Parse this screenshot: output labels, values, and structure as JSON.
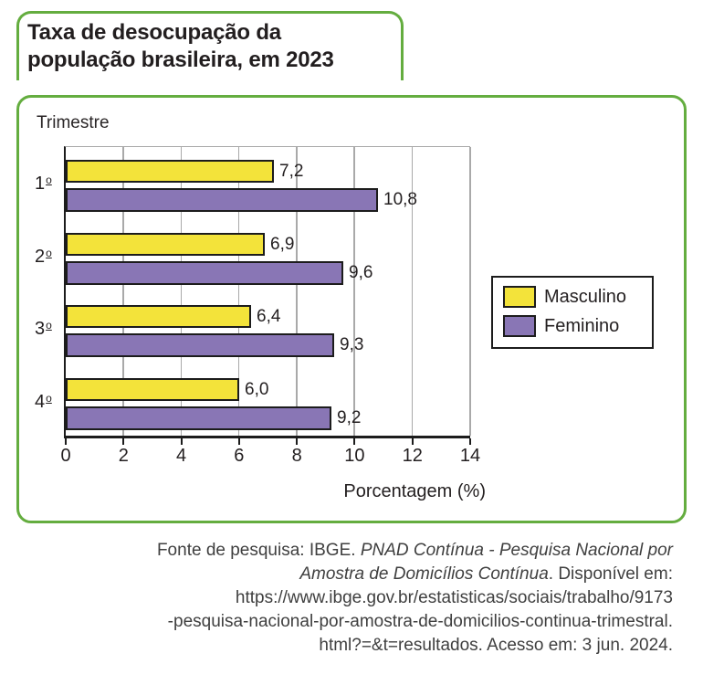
{
  "title": {
    "lines": [
      "Taxa de desocupação da",
      "população brasileira, em 2023"
    ]
  },
  "chart_data": {
    "type": "bar",
    "orientation": "horizontal",
    "y_axis_label": "Trimestre",
    "categories": [
      "1º",
      "2º",
      "3º",
      "4º"
    ],
    "series": [
      {
        "name": "Masculino",
        "color": "#f3e33a",
        "values": [
          7.2,
          6.9,
          6.4,
          6.0
        ],
        "value_labels": [
          "7,2",
          "6,9",
          "6,4",
          "6,0"
        ]
      },
      {
        "name": "Feminino",
        "color": "#8976b5",
        "values": [
          10.8,
          9.6,
          9.3,
          9.2
        ],
        "value_labels": [
          "10,8",
          "9,6",
          "9,3",
          "9,2"
        ]
      }
    ],
    "x_axis": {
      "label": "Porcentagem (%)",
      "min": 0,
      "max": 14,
      "tick_step": 2,
      "ticks": [
        "0",
        "2",
        "4",
        "6",
        "8",
        "10",
        "12",
        "14"
      ]
    },
    "grid": true,
    "legend_position": "right"
  },
  "colors": {
    "frame_green": "#64ad3f",
    "bar_yellow": "#f3e33a",
    "bar_purple": "#8976b5",
    "line_black": "#1c1c1c",
    "grid_gray": "#a9a9a9"
  },
  "footer": {
    "lines": [
      [
        {
          "text": "Fonte de pesquisa: IBGE. ",
          "italic": false
        },
        {
          "text": "PNAD Contínua - Pesquisa Nacional por",
          "italic": true
        }
      ],
      [
        {
          "text": "Amostra de Domicílios Contínua",
          "italic": true
        },
        {
          "text": ". Disponível em:",
          "italic": false
        }
      ],
      [
        {
          "text": "https://www.ibge.gov.br/estatisticas/sociais/trabalho/9173",
          "italic": false
        }
      ],
      [
        {
          "text": "-pesquisa-nacional-por-amostra-de-domicilios-continua-trimestral.",
          "italic": false
        }
      ],
      [
        {
          "text": "html?=&t=resultados. Acesso em: 3 jun. 2024.",
          "italic": false
        }
      ]
    ]
  }
}
